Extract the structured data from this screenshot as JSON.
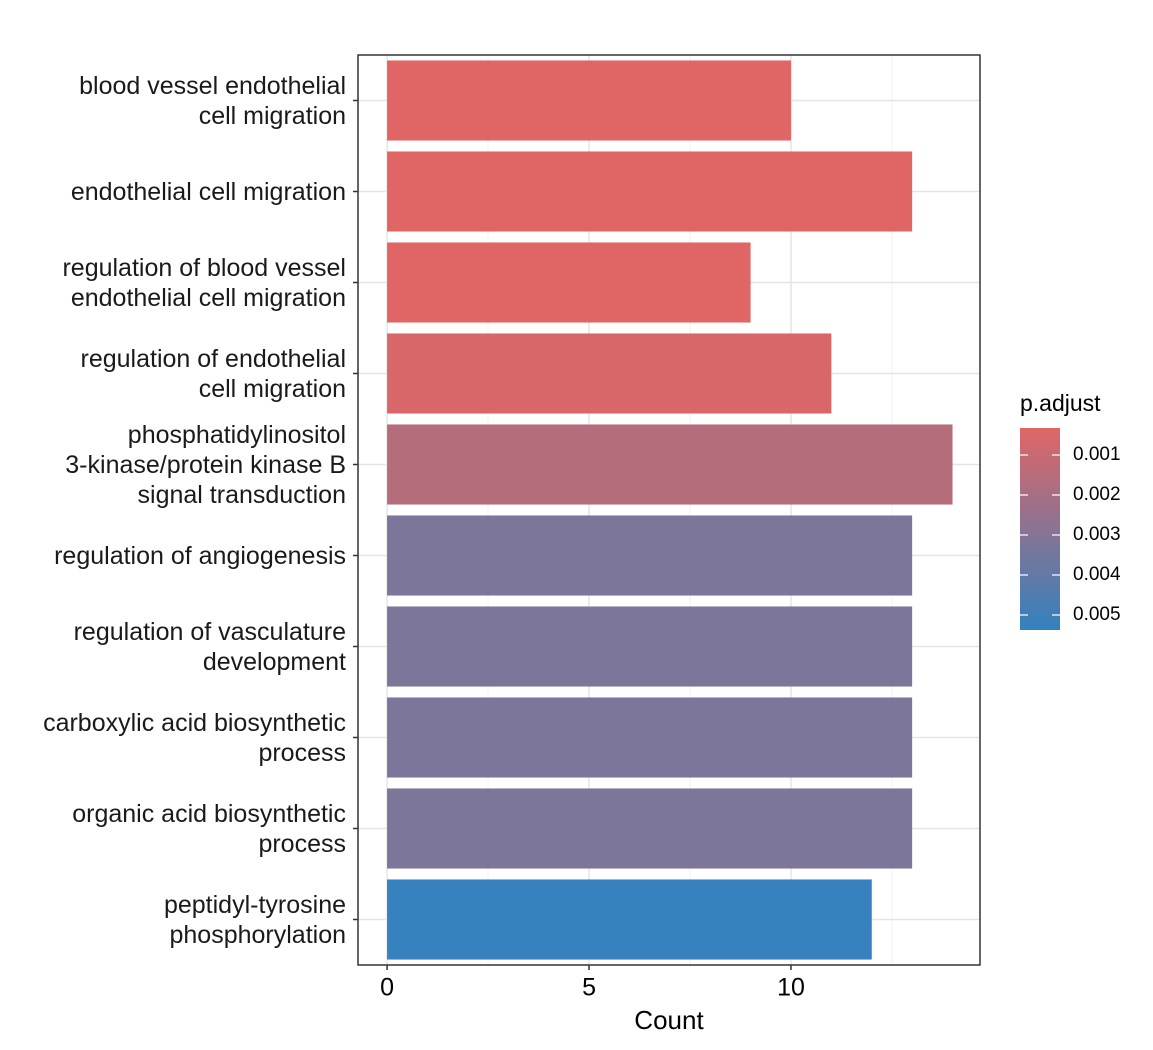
{
  "chart_data": {
    "type": "bar",
    "orientation": "horizontal",
    "x_label": "Count",
    "categories": [
      "blood vessel endothelial\ncell migration",
      "endothelial cell migration",
      "regulation of blood vessel\nendothelial cell migration",
      "regulation of endothelial\ncell migration",
      "phosphatidylinositol\n3-kinase/protein kinase B\nsignal transduction",
      "regulation of angiogenesis",
      "regulation of vasculature\ndevelopment",
      "carboxylic acid biosynthetic\nprocess",
      "organic acid biosynthetic\nprocess",
      "peptidyl-tyrosine\nphosphorylation"
    ],
    "values": [
      10,
      13,
      9,
      11,
      14,
      13,
      13,
      13,
      13,
      12
    ],
    "p_adjust": [
      0.00033,
      0.00033,
      0.00033,
      0.00053,
      0.00159,
      0.00326,
      0.00326,
      0.00326,
      0.00326,
      0.0053
    ],
    "xlim": [
      -0.72,
      14.68
    ],
    "xticks": [
      0,
      5,
      10
    ],
    "x_minor_grid": [
      2.5,
      7.5,
      12.5
    ],
    "grid": true,
    "colorbar": {
      "title": "p.adjust",
      "lim": [
        0.000325,
        0.005375
      ],
      "ticks": [
        0.001,
        0.002,
        0.003,
        0.004,
        0.005
      ],
      "low_color": "#E06666",
      "high_color": "#3381BF"
    }
  }
}
